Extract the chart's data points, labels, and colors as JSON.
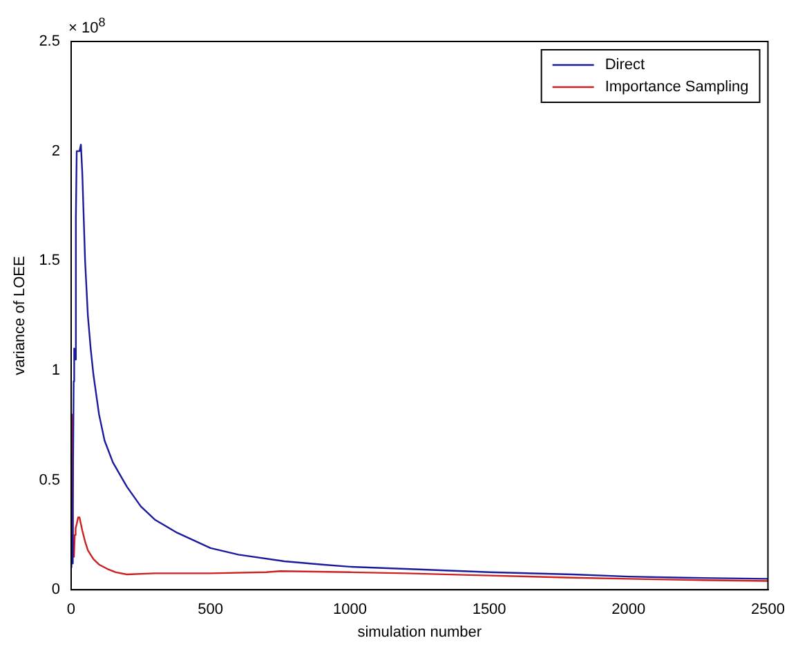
{
  "chart_data": {
    "type": "line",
    "xlabel": "simulation number",
    "ylabel": "variance of LOEE",
    "annotations": [
      "× 10$^{8}$"
    ],
    "xlim": [
      0,
      2500
    ],
    "xticks": [
      0,
      500,
      1000,
      1500,
      2000,
      2500
    ],
    "ylim": [
      0,
      2.5
    ],
    "yticks": [
      0,
      0.5,
      1,
      1.5,
      2,
      2.5
    ],
    "grid": false,
    "legend": "top right",
    "marker": "none",
    "line_style": "solid",
    "series": [
      {
        "name": "Direct",
        "color": "#1a1a9c",
        "x": [
          1,
          3,
          5,
          7,
          9,
          11,
          14,
          17,
          20,
          25,
          30,
          35,
          40,
          45,
          50,
          60,
          70,
          80,
          100,
          120,
          150,
          200,
          250,
          300,
          380,
          500,
          600,
          765,
          900,
          1000,
          1200,
          1500,
          1800,
          2000,
          2200,
          2500
        ],
        "values": [
          0.1,
          0.25,
          0.12,
          0.4,
          0.95,
          1.1,
          1.05,
          1.7,
          2.0,
          2.0,
          2.0,
          2.03,
          1.9,
          1.7,
          1.5,
          1.25,
          1.1,
          0.98,
          0.8,
          0.68,
          0.58,
          0.47,
          0.38,
          0.32,
          0.26,
          0.19,
          0.16,
          0.13,
          0.115,
          0.105,
          0.095,
          0.08,
          0.07,
          0.06,
          0.055,
          0.05
        ]
      },
      {
        "name": "Importance Sampling",
        "color": "#cc2020",
        "x": [
          1,
          2,
          3,
          5,
          7,
          10,
          13,
          16,
          20,
          25,
          30,
          35,
          40,
          50,
          60,
          80,
          100,
          130,
          160,
          200,
          300,
          500,
          700,
          750,
          1000,
          1200,
          1500,
          1800,
          2000,
          2200,
          2500
        ],
        "values": [
          0.33,
          0.8,
          0.78,
          0.33,
          0.2,
          0.15,
          0.25,
          0.28,
          0.3,
          0.33,
          0.33,
          0.3,
          0.27,
          0.22,
          0.18,
          0.14,
          0.115,
          0.095,
          0.08,
          0.07,
          0.075,
          0.075,
          0.08,
          0.085,
          0.08,
          0.075,
          0.065,
          0.055,
          0.05,
          0.045,
          0.04
        ]
      }
    ]
  }
}
